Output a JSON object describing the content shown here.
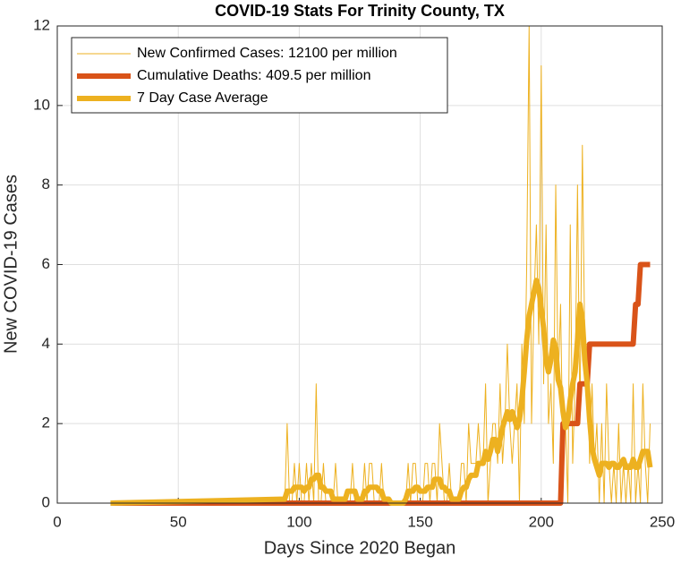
{
  "chart_data": {
    "type": "line",
    "title": "COVID-19 Stats For Trinity County, TX",
    "x_label": "Days Since 2020 Began",
    "y_label": "New COVID-19 Cases",
    "xlim": [
      0,
      250
    ],
    "xticks": [
      0,
      50,
      100,
      150,
      200,
      250
    ],
    "ylim": [
      0,
      12
    ],
    "yticks": [
      0,
      2,
      4,
      6,
      8,
      10,
      12
    ],
    "grid": true,
    "legend": "top-left",
    "series": [
      {
        "name": "New Confirmed Cases: 12100 per million",
        "color": "#edb120",
        "x": [
          22,
          94,
          95,
          96,
          97,
          98,
          99,
          100,
          101,
          102,
          103,
          104,
          105,
          106,
          107,
          108,
          109,
          110,
          111,
          112,
          113,
          114,
          115,
          116,
          117,
          118,
          119,
          120,
          121,
          122,
          123,
          124,
          125,
          126,
          127,
          128,
          129,
          130,
          131,
          132,
          133,
          134,
          135,
          136,
          137,
          138,
          139,
          140,
          141,
          142,
          143,
          144,
          145,
          146,
          147,
          148,
          149,
          150,
          151,
          152,
          153,
          154,
          155,
          156,
          157,
          158,
          159,
          160,
          161,
          162,
          163,
          164,
          165,
          166,
          167,
          168,
          169,
          170,
          171,
          172,
          173,
          174,
          175,
          176,
          177,
          178,
          179,
          180,
          181,
          182,
          183,
          184,
          185,
          186,
          187,
          188,
          189,
          190,
          191,
          192,
          193,
          194,
          195,
          196,
          197,
          198,
          199,
          200,
          201,
          202,
          203,
          204,
          205,
          206,
          207,
          208,
          209,
          210,
          211,
          212,
          213,
          214,
          215,
          216,
          217,
          218,
          219,
          220,
          221,
          222,
          223,
          224,
          225,
          226,
          227,
          228,
          229,
          230,
          231,
          232,
          233,
          234,
          235,
          236,
          237,
          238,
          239,
          240,
          241,
          242,
          243,
          244,
          245
        ],
        "values": [
          0,
          0,
          2,
          0,
          0,
          1,
          0,
          1,
          0,
          0,
          1,
          0,
          1,
          0,
          3,
          0,
          0,
          1,
          0,
          0,
          0,
          0,
          1,
          0,
          0,
          0,
          0,
          0,
          0,
          1,
          0,
          0,
          0,
          0,
          1,
          0,
          1,
          1,
          0,
          0,
          0,
          1,
          0,
          0,
          0,
          0,
          0,
          0,
          0,
          0,
          0,
          0,
          1,
          0,
          1,
          1,
          0,
          0,
          0,
          1,
          1,
          0,
          1,
          1,
          0,
          2,
          1,
          0,
          0,
          1,
          0,
          0,
          0,
          0,
          1,
          1,
          0,
          2,
          1,
          1,
          1,
          2,
          1,
          1,
          3,
          0,
          1,
          2,
          2,
          1,
          3,
          1,
          2,
          4,
          2,
          1,
          2,
          3,
          0,
          4,
          2,
          6,
          12,
          2,
          5,
          7,
          4,
          11,
          3,
          7,
          2,
          3,
          1,
          8,
          3,
          5,
          1,
          2,
          0,
          7,
          1,
          3,
          8,
          2,
          9,
          4,
          4,
          1,
          3,
          1,
          2,
          0,
          2,
          0,
          3,
          1,
          0,
          1,
          0,
          2,
          0,
          1,
          0,
          1,
          0,
          3,
          0,
          1,
          0,
          3,
          1,
          0,
          2
        ]
      },
      {
        "name": "Cumulative Deaths: 409.5 per million",
        "color": "#d95319",
        "x": [
          22,
          208,
          209,
          215,
          216,
          219,
          220,
          221,
          238,
          239,
          240,
          241,
          245
        ],
        "values": [
          0,
          0,
          2,
          2,
          3,
          3,
          4,
          4,
          4,
          5,
          5,
          6,
          6
        ]
      },
      {
        "name": "7 Day Case Average",
        "color": "#edb120",
        "x": [
          22,
          94,
          95,
          96,
          97,
          98,
          99,
          100,
          101,
          102,
          103,
          104,
          105,
          106,
          107,
          108,
          109,
          110,
          111,
          112,
          113,
          114,
          115,
          116,
          117,
          118,
          119,
          120,
          121,
          122,
          123,
          124,
          125,
          126,
          127,
          128,
          129,
          130,
          131,
          132,
          133,
          134,
          135,
          136,
          137,
          138,
          139,
          140,
          141,
          142,
          143,
          144,
          145,
          146,
          147,
          148,
          149,
          150,
          151,
          152,
          153,
          154,
          155,
          156,
          157,
          158,
          159,
          160,
          161,
          162,
          163,
          164,
          165,
          166,
          167,
          168,
          169,
          170,
          171,
          172,
          173,
          174,
          175,
          176,
          177,
          178,
          179,
          180,
          181,
          182,
          183,
          184,
          185,
          186,
          187,
          188,
          189,
          190,
          191,
          192,
          193,
          194,
          195,
          196,
          197,
          198,
          199,
          200,
          201,
          202,
          203,
          204,
          205,
          206,
          207,
          208,
          209,
          210,
          211,
          212,
          213,
          214,
          215,
          216,
          217,
          218,
          219,
          220,
          221,
          222,
          223,
          224,
          225,
          226,
          227,
          228,
          229,
          230,
          231,
          232,
          233,
          234,
          235,
          236,
          237,
          238,
          239,
          240,
          241,
          242,
          243,
          244,
          245
        ],
        "values": [
          0,
          0.1,
          0.3,
          0.3,
          0.3,
          0.4,
          0.4,
          0.4,
          0.4,
          0.3,
          0.4,
          0.4,
          0.6,
          0.6,
          0.7,
          0.7,
          0.4,
          0.4,
          0.3,
          0.3,
          0.3,
          0.1,
          0.1,
          0.1,
          0.1,
          0.1,
          0.1,
          0.3,
          0.3,
          0.3,
          0.3,
          0.1,
          0.1,
          0.1,
          0.3,
          0.3,
          0.4,
          0.4,
          0.4,
          0.4,
          0.3,
          0.3,
          0.1,
          0.1,
          0.1,
          0,
          0,
          0,
          0,
          0,
          0,
          0.1,
          0.3,
          0.3,
          0.3,
          0.4,
          0.4,
          0.3,
          0.3,
          0.3,
          0.4,
          0.4,
          0.4,
          0.6,
          0.6,
          0.6,
          0.4,
          0.4,
          0.3,
          0.3,
          0.1,
          0.1,
          0.1,
          0.1,
          0.3,
          0.4,
          0.4,
          0.6,
          0.7,
          0.7,
          0.7,
          1,
          1,
          1,
          1.3,
          1.1,
          1.3,
          1.6,
          1.6,
          1.3,
          1.6,
          1.9,
          2.1,
          2.3,
          2.1,
          2.3,
          2.1,
          1.9,
          2.1,
          2.6,
          3.3,
          4.1,
          4.7,
          5,
          5.3,
          5.6,
          5.4,
          4.9,
          4.4,
          3.6,
          3.3,
          3.6,
          4.1,
          3.9,
          3.1,
          2.9,
          2.3,
          1.9,
          2.1,
          2.6,
          3,
          3.3,
          4.1,
          5,
          4.6,
          3.6,
          3,
          2.1,
          1.4,
          1.1,
          0.9,
          0.7,
          1,
          1,
          1,
          0.9,
          1,
          1,
          0.9,
          0.9,
          1,
          1.1,
          0.9,
          0.9,
          0.9,
          1.1,
          0.9,
          0.9,
          1.1,
          1.3,
          1.3,
          1.3,
          0.9
        ]
      }
    ]
  }
}
